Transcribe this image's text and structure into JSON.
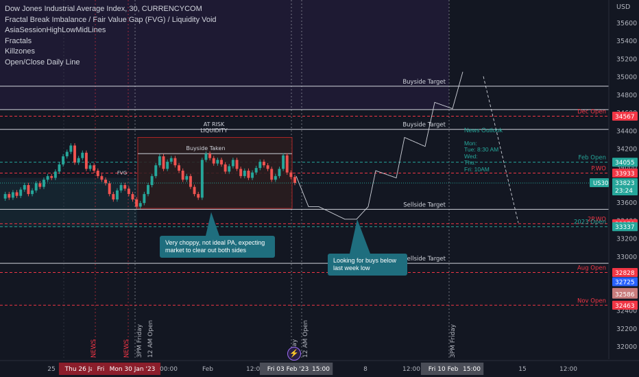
{
  "legend": {
    "title": "Dow Jones Industrial Average Index, 30, CURRENCYCOM",
    "indicators": [
      "Fractal Break Imbalance / Fair Value Gap (FVG) / Liquidity Void",
      "AsiaSessionHighLowMidLines",
      "Fractals",
      "Killzones",
      "Open/Close Daily Line"
    ]
  },
  "annotations": {
    "callout_left": "Very choppy, not ideal PA, expecting\nmarket to clear out both sides",
    "callout_right": "Looking for buys below\nlast week low",
    "news_title": "News Outlook",
    "news_lines": [
      "Mon:",
      "Tue: 8:30 AM",
      "Wed:",
      "Thu:",
      "Fri: 10AM"
    ]
  },
  "colors": {
    "background": "#131722",
    "candle": "#26a69a",
    "level_red": "#f23645",
    "level_teal": "#26a69a",
    "level_white": "#d1d4dc",
    "callout": "#1f6e7e",
    "premium_zone": "#1e1a33"
  },
  "chart_data": {
    "type": "candlestick",
    "title": "Dow Jones Industrial Average Index, 30, CURRENCYCOM",
    "symbol_badge": "US30",
    "last_price": 33823,
    "countdown": "23:24",
    "ylim": [
      31850,
      35800
    ],
    "y_axis_label": "USD",
    "y_ticks": [
      32000,
      32200,
      32400,
      32600,
      32800,
      33000,
      33200,
      33400,
      33600,
      33800,
      34000,
      34200,
      34400,
      34600,
      34800,
      35000,
      35200,
      35400,
      35600
    ],
    "x_ticks": [
      "25",
      "Thu 26 Jan '23",
      "Fri 27",
      "Mon 30 Jan '23",
      "00:00",
      "Feb",
      "12:00",
      "Fri 03 Feb '23",
      "15:00",
      "8",
      "12:00",
      "Fri 10 Feb '23",
      "15:00",
      "15",
      "12:00"
    ],
    "price_labels": [
      {
        "value": 34567,
        "text": "34567",
        "color": "#f23645"
      },
      {
        "value": 34055,
        "text": "34055",
        "color": "#26a69a"
      },
      {
        "value": 33933,
        "text": "33933",
        "color": "#f23645"
      },
      {
        "value": 33370,
        "text": "33370",
        "color": "#f23645"
      },
      {
        "value": 33337,
        "text": "33337",
        "color": "#26a69a"
      },
      {
        "value": 32828,
        "text": "32828",
        "color": "#f23645"
      },
      {
        "value": 32725,
        "text": "32725",
        "color": "#2962ff"
      },
      {
        "value": 32605,
        "text": "32605",
        "color": "#c97c7c"
      },
      {
        "value": 32586,
        "text": "32586",
        "color": "#c97c7c"
      },
      {
        "value": 32463,
        "text": "32463",
        "color": "#f23645"
      }
    ],
    "levels": [
      {
        "label": "Buyside Target",
        "value": 34900,
        "color": "#d1d4dc",
        "style": "solid"
      },
      {
        "label": "",
        "value": 34640,
        "color": "#d1d4dc",
        "style": "solid"
      },
      {
        "label": "Buyside Target",
        "value": 34420,
        "color": "#d1d4dc",
        "style": "solid"
      },
      {
        "label": "Dec Open",
        "value": 34567,
        "color": "#f23645",
        "style": "dashed"
      },
      {
        "label": "Feb Open",
        "value": 34055,
        "color": "#26a69a",
        "style": "dashed"
      },
      {
        "label": "P.WO",
        "value": 33933,
        "color": "#f23645",
        "style": "dashed"
      },
      {
        "label": "Sellside Target",
        "value": 33530,
        "color": "#d1d4dc",
        "style": "solid"
      },
      {
        "label": "2P.WO",
        "value": 33370,
        "color": "#f23645",
        "style": "dashed"
      },
      {
        "label": "2023 Open",
        "value": 33337,
        "color": "#26a69a",
        "style": "dashed"
      },
      {
        "label": "Sellside Target",
        "value": 32930,
        "color": "#d1d4dc",
        "style": "solid"
      },
      {
        "label": "Aug Open",
        "value": 32828,
        "color": "#f23645",
        "style": "dashed"
      },
      {
        "label": "Nov Open",
        "value": 32463,
        "color": "#f23645",
        "style": "dashed"
      }
    ],
    "zone_labels": [
      "Buyside Taken",
      "AT RISK",
      "LIQUIDITY",
      "FVG"
    ],
    "vertical_labels": [
      "NEWS",
      "NEWS",
      "3PM Friday",
      "12 AM Open",
      "Friday",
      "12 AM Open",
      "3PM Friday"
    ],
    "price_path": [
      33650,
      33700,
      33660,
      33720,
      33680,
      33750,
      33800,
      33700,
      33740,
      33820,
      33780,
      33860,
      33900,
      33880,
      33950,
      34030,
      34120,
      34170,
      34240,
      34050,
      34100,
      34160,
      33980,
      34020,
      33960,
      33900,
      33860,
      33820,
      33700,
      33640,
      33740,
      33800,
      33760,
      33700,
      33640,
      33560,
      33600,
      33700,
      33800,
      33900,
      34020,
      34120,
      33980,
      34060,
      34100,
      34020,
      33960,
      33860,
      33900,
      33780,
      33700,
      33660,
      34080,
      34150,
      34100,
      34040,
      34080,
      34030,
      33950,
      34010,
      34080,
      33980,
      33900,
      33960,
      33880,
      33940,
      33990,
      34060,
      34020,
      33980,
      33860,
      33900,
      33980,
      34130,
      33940,
      33890,
      33823
    ]
  }
}
